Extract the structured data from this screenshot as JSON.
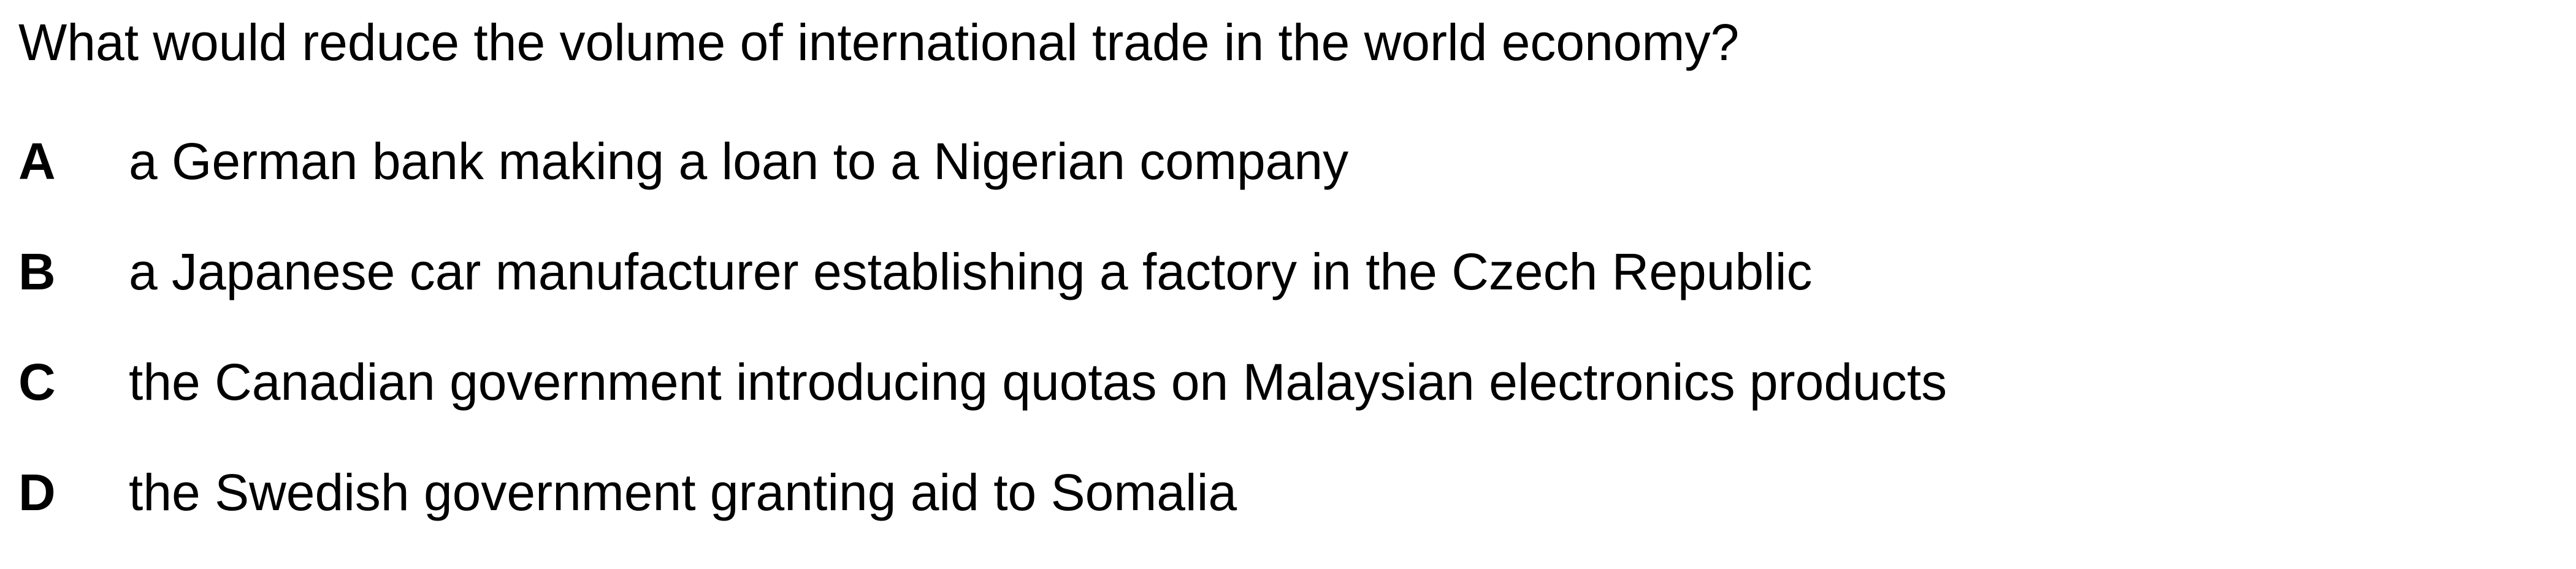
{
  "question": "What would reduce the volume of international trade in the world economy?",
  "options": [
    {
      "letter": "A",
      "text": "a German bank making a loan to a Nigerian company"
    },
    {
      "letter": "B",
      "text": "a Japanese car manufacturer establishing a factory in the Czech Republic"
    },
    {
      "letter": "C",
      "text": "the Canadian government introducing quotas on Malaysian electronics products"
    },
    {
      "letter": "D",
      "text": "the Swedish government granting aid to Somalia"
    }
  ]
}
